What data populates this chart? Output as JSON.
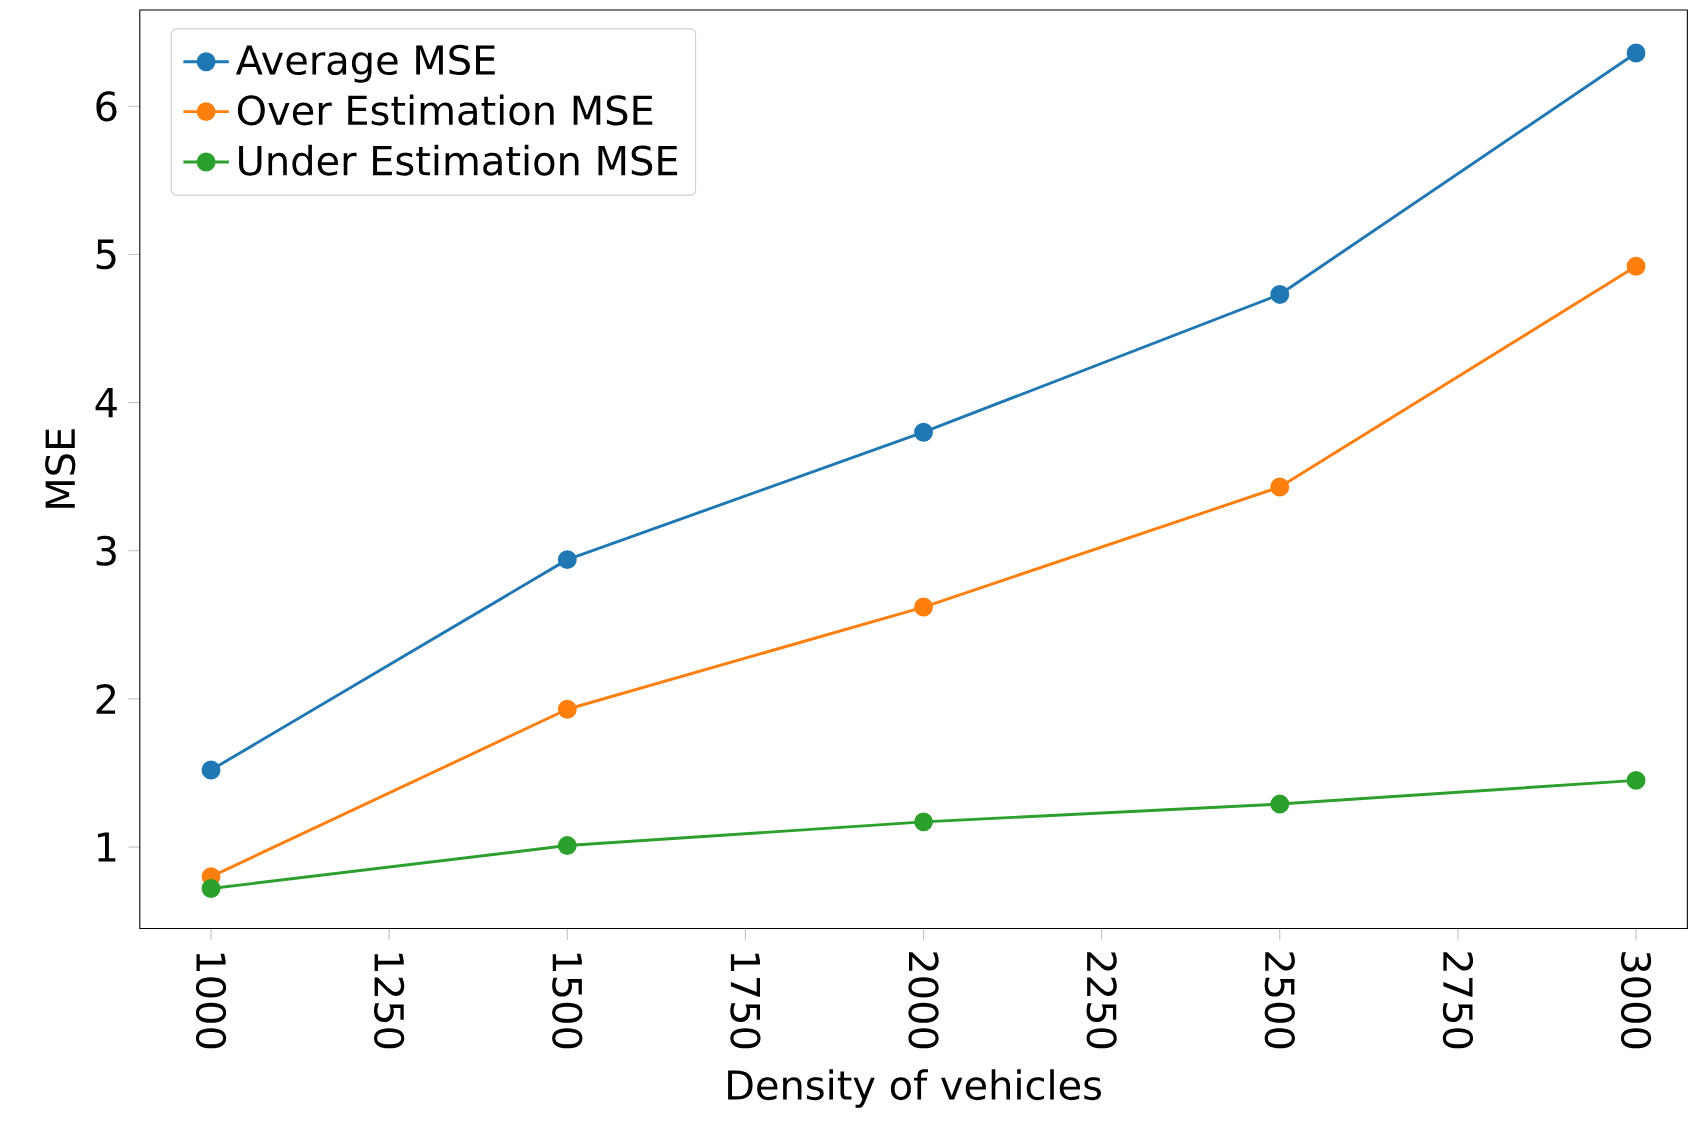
{
  "chart_data": {
    "type": "line",
    "xlabel": "Density of vehicles",
    "ylabel": "MSE",
    "x": [
      1000,
      1500,
      2000,
      2500,
      3000
    ],
    "series": [
      {
        "name": "Average MSE",
        "color": "#1f77b4",
        "values": [
          1.52,
          2.94,
          3.8,
          4.73,
          6.36
        ]
      },
      {
        "name": "Over Estimation MSE",
        "color": "#ff7f0e",
        "values": [
          0.8,
          1.93,
          2.62,
          3.43,
          4.92
        ]
      },
      {
        "name": "Under Estimation MSE",
        "color": "#2ca02c",
        "values": [
          0.72,
          1.01,
          1.17,
          1.29,
          1.45
        ]
      }
    ],
    "xlim": [
      900,
      3072
    ],
    "ylim": [
      0.45,
      6.65
    ],
    "xticks": [
      1000,
      1250,
      1500,
      1750,
      2000,
      2250,
      2500,
      2750,
      3000
    ],
    "yticks": [
      1,
      2,
      3,
      4,
      5,
      6
    ],
    "legend": "top left",
    "marker": "circle",
    "line_style": "solid",
    "grid": false
  }
}
